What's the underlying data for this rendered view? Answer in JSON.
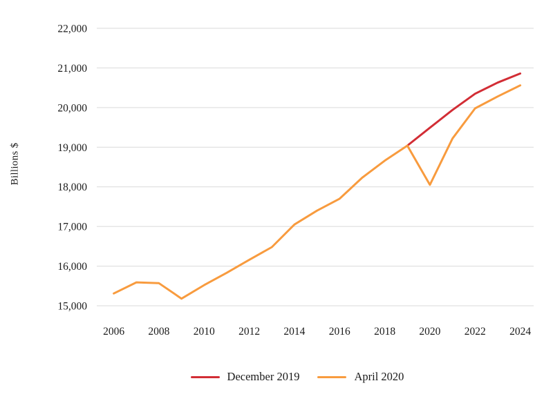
{
  "chart_data": {
    "type": "line",
    "title": "",
    "xlabel": "",
    "ylabel": "Billions $",
    "xlim": [
      2006,
      2024
    ],
    "ylim": [
      15000,
      22000
    ],
    "grid": "horizontal-only",
    "gridline_color": "#d9d9d9",
    "legend_position": "bottom-center",
    "x_ticks": [
      2006,
      2008,
      2010,
      2012,
      2014,
      2016,
      2018,
      2020,
      2022,
      2024
    ],
    "x_tick_labels": [
      "2006",
      "2008",
      "2010",
      "2012",
      "2014",
      "2016",
      "2018",
      "2020",
      "2022",
      "2024"
    ],
    "y_ticks": [
      15000,
      16000,
      17000,
      18000,
      19000,
      20000,
      21000,
      22000
    ],
    "y_tick_labels": [
      "15,000",
      "16,000",
      "17,000",
      "18,000",
      "19,000",
      "20,000",
      "21,000",
      "22,000"
    ],
    "series": [
      {
        "name": "December 2019",
        "color": "#d22d35",
        "x": [
          2019,
          2020,
          2021,
          2022,
          2023,
          2024
        ],
        "values": [
          19040,
          19490,
          19940,
          20350,
          20630,
          20860
        ]
      },
      {
        "name": "April 2020",
        "color": "#f89b3e",
        "x": [
          2006,
          2007,
          2008,
          2009,
          2010,
          2011,
          2012,
          2013,
          2014,
          2015,
          2016,
          2017,
          2018,
          2019,
          2020,
          2021,
          2022,
          2023,
          2024
        ],
        "values": [
          15310,
          15590,
          15570,
          15180,
          15520,
          15830,
          16160,
          16480,
          17050,
          17400,
          17700,
          18230,
          18660,
          19040,
          18050,
          19220,
          19980,
          20280,
          20560
        ]
      }
    ]
  }
}
